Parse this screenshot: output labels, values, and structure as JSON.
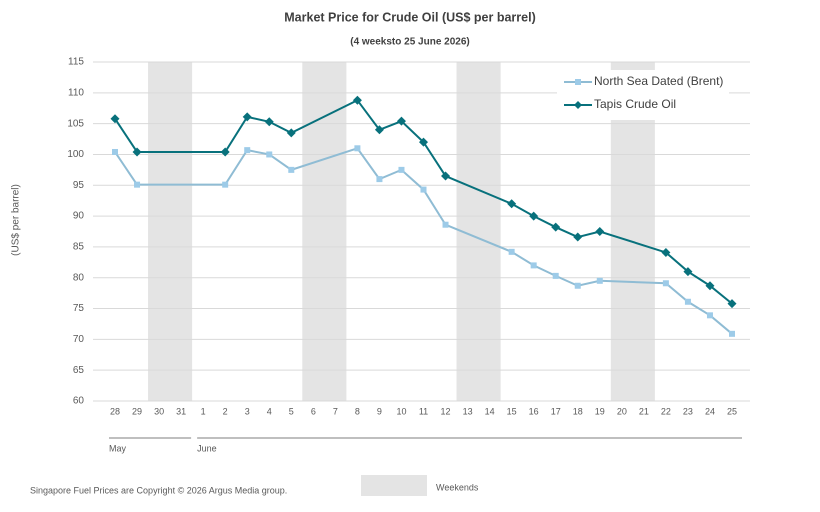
{
  "chart_data": {
    "type": "line",
    "title": "Market Price for Crude  Oil (US$ per barrel)",
    "subtitle": "(4 weeksto 25 June 2026)",
    "y_label": "(US$ per barrel)",
    "categories": [
      "28",
      "29",
      "30",
      "31",
      "1",
      "2",
      "3",
      "4",
      "5",
      "6",
      "7",
      "8",
      "9",
      "10",
      "11",
      "12",
      "13",
      "14",
      "15",
      "16",
      "17",
      "18",
      "19",
      "20",
      "21",
      "22",
      "23",
      "24",
      "25"
    ],
    "months": [
      {
        "label": "May",
        "from": "28",
        "to": "31"
      },
      {
        "label": "June",
        "from": "1",
        "to": "25"
      }
    ],
    "weekends": [
      [
        "30",
        "31"
      ],
      [
        "6",
        "7"
      ],
      [
        "13",
        "14"
      ],
      [
        "20",
        "21"
      ]
    ],
    "weekend_label": "Weekends",
    "weekend_color": "#e4e4e4",
    "ylim": [
      60,
      115
    ],
    "yticks": [
      60,
      65,
      70,
      75,
      80,
      85,
      90,
      95,
      100,
      105,
      110,
      115
    ],
    "grid": true,
    "legend": "top-right",
    "series": [
      {
        "name": "North Sea Dated (Brent)",
        "color": "#8fbcd4",
        "marker_color": "#9dcbe8",
        "marker": "square",
        "x": [
          "28",
          "29",
          "2",
          "3",
          "4",
          "5",
          "8",
          "9",
          "10",
          "11",
          "12",
          "15",
          "16",
          "17",
          "18",
          "19",
          "22",
          "23",
          "24",
          "25"
        ],
        "values": [
          100.4,
          95.1,
          95.1,
          100.7,
          100.0,
          97.5,
          101.0,
          96.0,
          97.5,
          94.3,
          88.6,
          84.2,
          82.0,
          80.3,
          78.7,
          79.5,
          79.1,
          76.1,
          73.9,
          70.9
        ]
      },
      {
        "name": "Tapis Crude Oil",
        "color": "#08717c",
        "marker_color": "#08717c",
        "marker": "diamond",
        "x": [
          "28",
          "29",
          "2",
          "3",
          "4",
          "5",
          "8",
          "9",
          "10",
          "11",
          "12",
          "15",
          "16",
          "17",
          "18",
          "19",
          "22",
          "23",
          "24",
          "25"
        ],
        "values": [
          105.8,
          100.4,
          100.4,
          106.1,
          105.3,
          103.5,
          108.8,
          104.0,
          105.4,
          102.0,
          96.5,
          92.0,
          90.0,
          88.2,
          86.6,
          87.5,
          84.1,
          81.0,
          78.7,
          75.8
        ]
      }
    ],
    "footnote": "Singapore Fuel Prices are Copyright © 2026 Argus Media group."
  }
}
